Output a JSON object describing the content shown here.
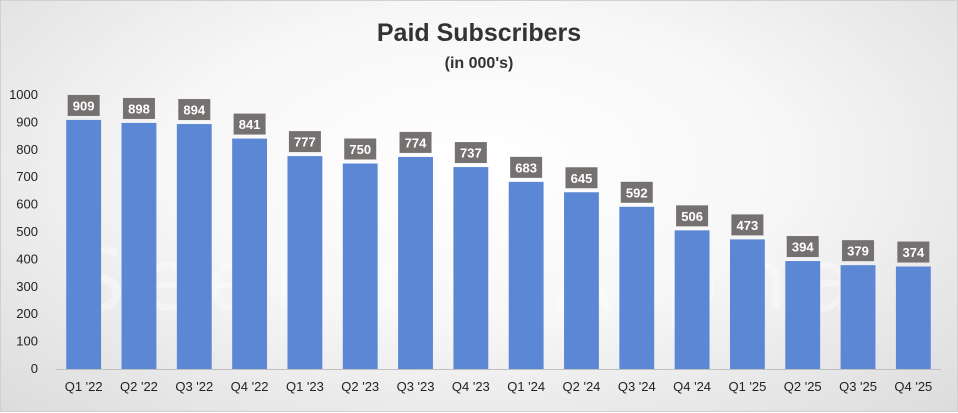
{
  "chart_data": {
    "type": "bar",
    "title": "Paid Subscribers",
    "subtitle": "(in 000's)",
    "xlabel": "",
    "ylabel": "",
    "categories": [
      "Q1 '22",
      "Q2 '22",
      "Q3 '22",
      "Q4 '22",
      "Q1 '23",
      "Q2 '23",
      "Q3 '23",
      "Q4 '23",
      "Q1 '24",
      "Q2 '24",
      "Q3 '24",
      "Q4 '24",
      "Q1 '25",
      "Q2 '25",
      "Q3 '25",
      "Q4 '25"
    ],
    "values": [
      909,
      898,
      894,
      841,
      777,
      750,
      774,
      737,
      683,
      645,
      592,
      506,
      473,
      394,
      379,
      374
    ],
    "ylim": [
      0,
      1000
    ],
    "yticks": [
      "0",
      "100",
      "200",
      "300",
      "400",
      "500",
      "600",
      "700",
      "800",
      "900",
      "1000"
    ],
    "grid": false,
    "bar_color": "#5b87d4",
    "label_box_color": "#767171"
  },
  "watermark": "Seeking Alpha"
}
